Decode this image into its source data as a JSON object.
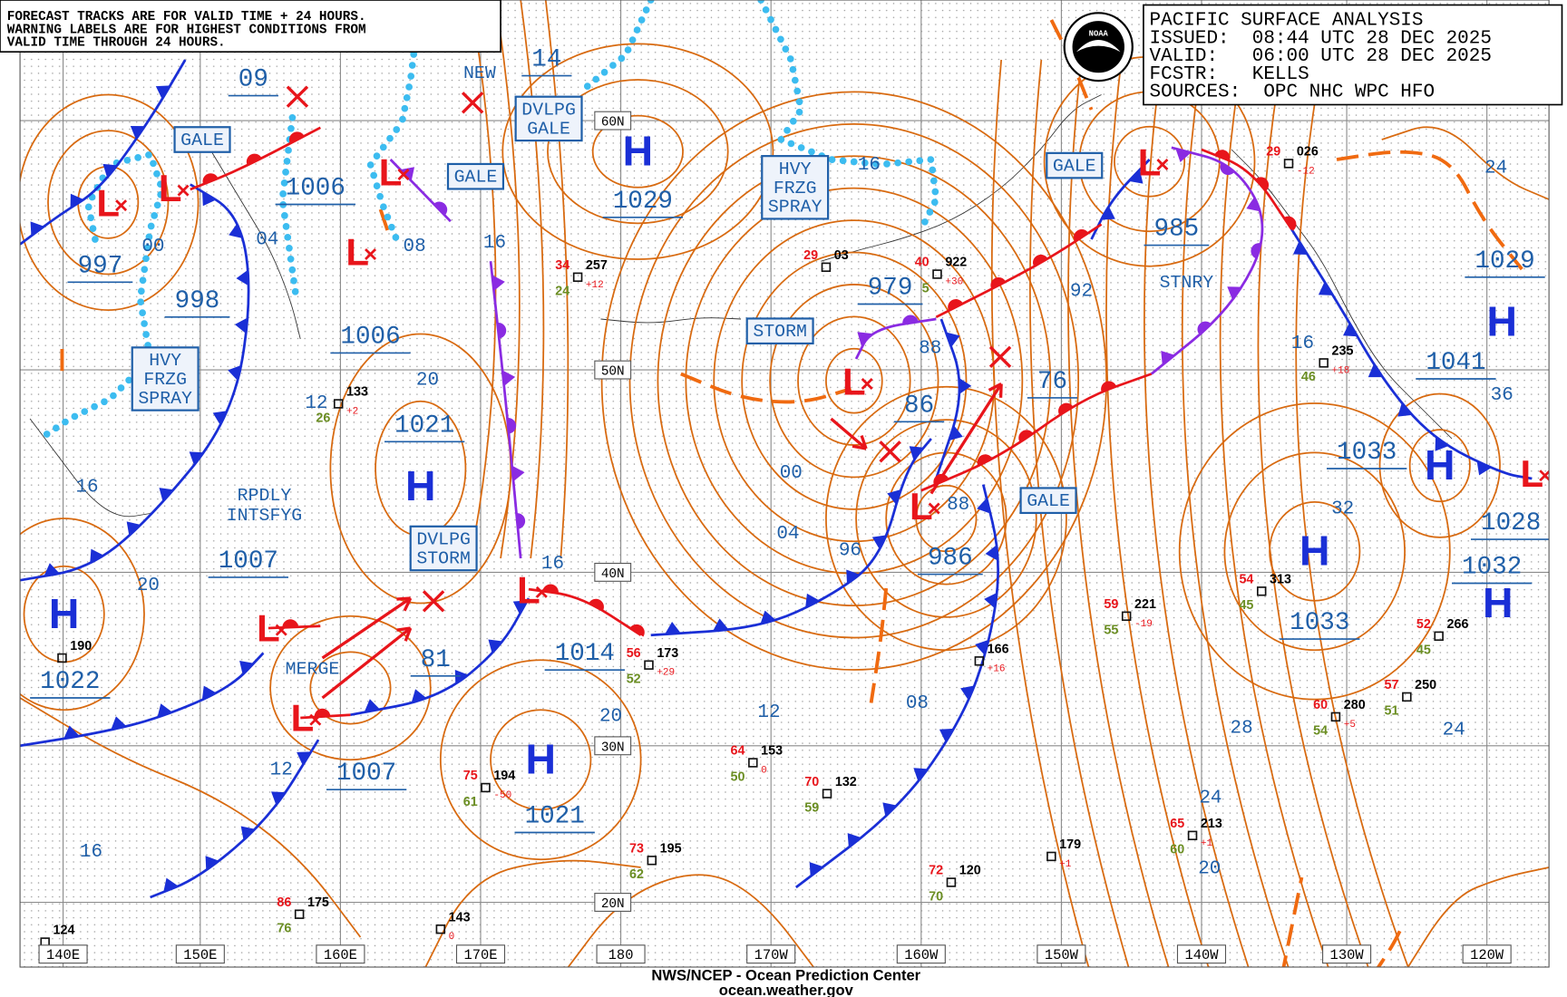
{
  "notice": {
    "lines": [
      "FORECAST TRACKS ARE FOR VALID TIME + 24 HOURS.",
      "WARNING LABELS ARE FOR HIGHEST CONDITIONS FROM",
      "VALID TIME THROUGH 24 HOURS."
    ]
  },
  "header": {
    "lines": [
      "PACIFIC SURFACE ANALYSIS",
      "ISSUED:  08:44 UTC 28 DEC 2025",
      "VALID:   06:00 UTC 28 DEC 2025",
      "FCSTR:   KELLS",
      "SOURCES:  OPC NHC WPC HFO"
    ],
    "logo": "NOAA"
  },
  "lat_labels": [
    "60N",
    "50N",
    "40N",
    "30N",
    "20N"
  ],
  "lon_labels": [
    "140E",
    "150E",
    "160E",
    "170E",
    "180",
    "170W",
    "160W",
    "150W",
    "140W",
    "130W",
    "120W"
  ],
  "centers": [
    "H",
    "H",
    "H",
    "H",
    "H",
    "H",
    "H",
    "H",
    "L",
    "L",
    "L",
    "L",
    "L",
    "L",
    "L",
    "L",
    "L",
    "L",
    "L"
  ],
  "center_pressures": [
    "09",
    "14",
    "1029",
    "1006",
    "997",
    "998",
    "1006",
    "1021",
    "1007",
    "81",
    "1022",
    "1007",
    "1014",
    "1021",
    "979",
    "86",
    "986",
    "985",
    "76",
    "1029",
    "1041",
    "1033",
    "1028",
    "1032",
    "1033"
  ],
  "isobar_labels": [
    "00",
    "04",
    "08",
    "16",
    "16",
    "20",
    "12",
    "16",
    "20",
    "16",
    "00",
    "04",
    "96",
    "88",
    "88",
    "92",
    "16",
    "36",
    "32",
    "24",
    "20",
    "12",
    "08",
    "12",
    "16",
    "28",
    "24",
    "20",
    "24"
  ],
  "warnings": [
    [
      "GALE"
    ],
    [
      "GALE"
    ],
    [
      "DVLPG",
      "GALE"
    ],
    [
      "HVY",
      "FRZG",
      "SPRAY"
    ],
    [
      "HVY",
      "FRZG",
      "SPRAY"
    ],
    [
      "STORM"
    ],
    [
      "GALE"
    ],
    [
      "GALE"
    ],
    [
      "DVLPG",
      "STORM"
    ]
  ],
  "annotations": [
    [
      "NEW"
    ],
    [
      "RPDLY",
      "INTSFYG"
    ],
    [
      "MERGE"
    ],
    [
      "STNRY"
    ]
  ],
  "stations": [
    {
      "pressure": "257",
      "temp": "34",
      "dewpoint": "24",
      "tendency": "+12"
    },
    {
      "pressure": "133",
      "dewpoint": "26",
      "tendency": "+2"
    },
    {
      "pressure": "173",
      "temp": "56",
      "dewpoint": "52",
      "tendency": "+29"
    },
    {
      "pressure": "153",
      "temp": "64",
      "dewpoint": "50",
      "tendency": "0"
    },
    {
      "pressure": "132",
      "temp": "70",
      "dewpoint": "59"
    },
    {
      "pressure": "194",
      "temp": "75",
      "dewpoint": "61",
      "tendency": "-50"
    },
    {
      "pressure": "195",
      "temp": "73",
      "dewpoint": "62"
    },
    {
      "pressure": "175",
      "temp": "86",
      "dewpoint": "76"
    },
    {
      "pressure": "143",
      "tendency": "0"
    },
    {
      "pressure": "124"
    },
    {
      "pressure": "922",
      "temp": "40",
      "dewpoint": "5",
      "tendency": "+30"
    },
    {
      "pressure": "166",
      "tendency": "+16"
    },
    {
      "pressure": "179",
      "tendency": "+1"
    },
    {
      "pressure": "120",
      "temp": "72",
      "dewpoint": "70"
    },
    {
      "pressure": "213",
      "temp": "65",
      "dewpoint": "60",
      "tendency": "+1"
    },
    {
      "pressure": "221",
      "temp": "59",
      "dewpoint": "55",
      "tendency": "-19"
    },
    {
      "pressure": "313",
      "temp": "54",
      "dewpoint": "45"
    },
    {
      "pressure": "280",
      "temp": "60",
      "dewpoint": "54",
      "tendency": "+5"
    },
    {
      "pressure": "250",
      "temp": "57",
      "dewpoint": "51"
    },
    {
      "pressure": "266",
      "temp": "52",
      "dewpoint": "45"
    },
    {
      "pressure": "235",
      "dewpoint": "46",
      "tendency": "+18"
    },
    {
      "pressure": "026",
      "temp": "29",
      "tendency": "-12"
    },
    {
      "pressure": "190"
    },
    {
      "pressure": "03",
      "temp": "29"
    }
  ],
  "footer": {
    "agency": "NWS/NCEP - Ocean Prediction Center",
    "url": "ocean.weather.gov"
  }
}
